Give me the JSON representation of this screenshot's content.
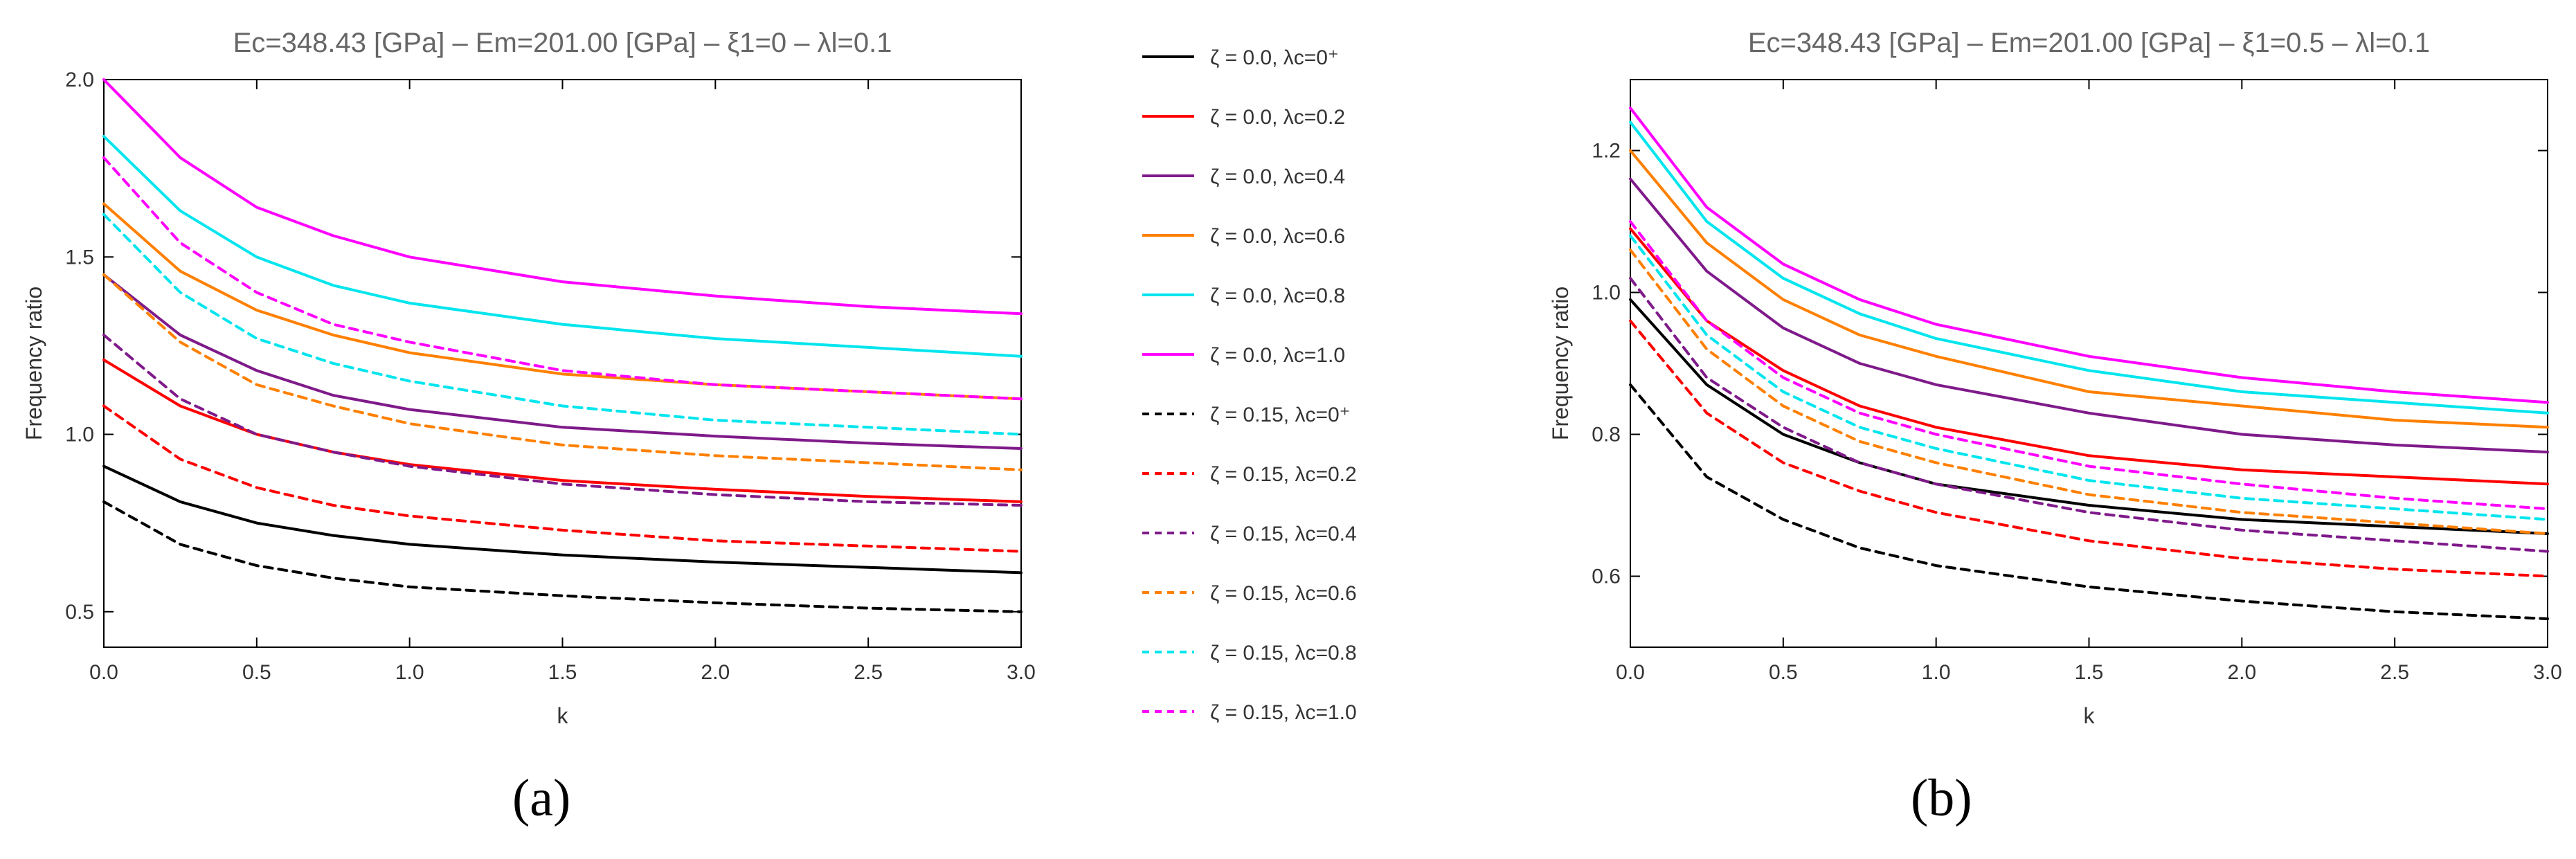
{
  "figure": {
    "panel_a_caption": "(a)",
    "panel_b_caption": "(b)"
  },
  "legend": {
    "entries": [
      {
        "zeta": "ζ = 0.0",
        "lambda": "λc=0⁺",
        "color": "#000000",
        "dash": false
      },
      {
        "zeta": "ζ = 0.0",
        "lambda": "λc=0.2",
        "color": "#ff0000",
        "dash": false
      },
      {
        "zeta": "ζ = 0.0",
        "lambda": "λc=0.4",
        "color": "#7f1a8a",
        "dash": false
      },
      {
        "zeta": "ζ = 0.0",
        "lambda": "λc=0.6",
        "color": "#ff8000",
        "dash": false
      },
      {
        "zeta": "ζ = 0.0",
        "lambda": "λc=0.8",
        "color": "#00e5ee",
        "dash": false
      },
      {
        "zeta": "ζ = 0.0",
        "lambda": "λc=1.0",
        "color": "#ff00ff",
        "dash": false
      },
      {
        "zeta": "ζ = 0.15",
        "lambda": "λc=0⁺",
        "color": "#000000",
        "dash": true
      },
      {
        "zeta": "ζ = 0.15",
        "lambda": "λc=0.2",
        "color": "#ff0000",
        "dash": true
      },
      {
        "zeta": "ζ = 0.15",
        "lambda": "λc=0.4",
        "color": "#7f1a8a",
        "dash": true
      },
      {
        "zeta": "ζ = 0.15",
        "lambda": "λc=0.6",
        "color": "#ff8000",
        "dash": true
      },
      {
        "zeta": "ζ = 0.15",
        "lambda": "λc=0.8",
        "color": "#00e5ee",
        "dash": true
      },
      {
        "zeta": "ζ = 0.15",
        "lambda": "λc=1.0",
        "color": "#ff00ff",
        "dash": true
      }
    ]
  },
  "chart_data": [
    {
      "type": "line",
      "title": "Ec=348.43 [GPa] – Em=201.00 [GPa] – ξ1=0 – λl=0.1",
      "xlabel": "k",
      "ylabel": "Frequency ratio",
      "xlim": [
        0,
        3
      ],
      "ylim": [
        0.4,
        2.0
      ],
      "xticks": [
        "0.0",
        "0.5",
        "1.0",
        "1.5",
        "2.0",
        "2.5",
        "3.0"
      ],
      "yticks": [
        "0.5",
        "1.0",
        "1.5",
        "2.0"
      ],
      "x": [
        0,
        0.25,
        0.5,
        0.75,
        1.0,
        1.5,
        2.0,
        2.5,
        3.0
      ],
      "series": [
        {
          "name": "ζ=0.0, λc=0⁺",
          "color": "#000000",
          "dash": false,
          "values": [
            0.91,
            0.81,
            0.75,
            0.715,
            0.69,
            0.66,
            0.64,
            0.625,
            0.61
          ]
        },
        {
          "name": "ζ=0.0, λc=0.2",
          "color": "#ff0000",
          "dash": false,
          "values": [
            1.21,
            1.08,
            1.0,
            0.95,
            0.915,
            0.87,
            0.845,
            0.825,
            0.81
          ]
        },
        {
          "name": "ζ=0.0, λc=0.4",
          "color": "#7f1a8a",
          "dash": false,
          "values": [
            1.45,
            1.28,
            1.18,
            1.11,
            1.07,
            1.02,
            0.995,
            0.975,
            0.96
          ]
        },
        {
          "name": "ζ=0.0, λc=0.6",
          "color": "#ff8000",
          "dash": false,
          "values": [
            1.65,
            1.46,
            1.35,
            1.28,
            1.23,
            1.17,
            1.14,
            1.12,
            1.1
          ]
        },
        {
          "name": "ζ=0.0, λc=0.8",
          "color": "#00e5ee",
          "dash": false,
          "values": [
            1.84,
            1.63,
            1.5,
            1.42,
            1.37,
            1.31,
            1.27,
            1.245,
            1.22
          ]
        },
        {
          "name": "ζ=0.0, λc=1.0",
          "color": "#ff00ff",
          "dash": false,
          "values": [
            2.0,
            1.78,
            1.64,
            1.56,
            1.5,
            1.43,
            1.39,
            1.36,
            1.34
          ]
        },
        {
          "name": "ζ=0.15, λc=0⁺",
          "color": "#000000",
          "dash": true,
          "values": [
            0.81,
            0.69,
            0.63,
            0.595,
            0.57,
            0.545,
            0.525,
            0.51,
            0.5
          ]
        },
        {
          "name": "ζ=0.15, λc=0.2",
          "color": "#ff0000",
          "dash": true,
          "values": [
            1.08,
            0.93,
            0.85,
            0.8,
            0.77,
            0.73,
            0.7,
            0.685,
            0.67
          ]
        },
        {
          "name": "ζ=0.15, λc=0.4",
          "color": "#7f1a8a",
          "dash": true,
          "values": [
            1.28,
            1.1,
            1.0,
            0.95,
            0.91,
            0.86,
            0.83,
            0.81,
            0.8
          ]
        },
        {
          "name": "ζ=0.15, λc=0.6",
          "color": "#ff8000",
          "dash": true,
          "values": [
            1.45,
            1.26,
            1.14,
            1.08,
            1.03,
            0.97,
            0.94,
            0.92,
            0.9
          ]
        },
        {
          "name": "ζ=0.15, λc=0.8",
          "color": "#00e5ee",
          "dash": true,
          "values": [
            1.62,
            1.4,
            1.27,
            1.2,
            1.15,
            1.08,
            1.04,
            1.02,
            1.0
          ]
        },
        {
          "name": "ζ=0.15, λc=1.0",
          "color": "#ff00ff",
          "dash": true,
          "values": [
            1.78,
            1.54,
            1.4,
            1.31,
            1.26,
            1.18,
            1.14,
            1.12,
            1.1
          ]
        }
      ]
    },
    {
      "type": "line",
      "title": "Ec=348.43 [GPa] – Em=201.00 [GPa] – ξ1=0.5 – λl=0.1",
      "xlabel": "k",
      "ylabel": "Frequency ratio",
      "xlim": [
        0,
        3
      ],
      "ylim": [
        0.5,
        1.3
      ],
      "xticks": [
        "0.0",
        "0.5",
        "1.0",
        "1.5",
        "2.0",
        "2.5",
        "3.0"
      ],
      "yticks": [
        "0.6",
        "0.8",
        "1.0",
        "1.2"
      ],
      "x": [
        0,
        0.25,
        0.5,
        0.75,
        1.0,
        1.5,
        2.0,
        2.5,
        3.0
      ],
      "series": [
        {
          "name": "ζ=0.0, λc=0⁺",
          "color": "#000000",
          "dash": false,
          "values": [
            0.99,
            0.87,
            0.8,
            0.76,
            0.73,
            0.7,
            0.68,
            0.67,
            0.66
          ]
        },
        {
          "name": "ζ=0.0, λc=0.2",
          "color": "#ff0000",
          "dash": false,
          "values": [
            1.09,
            0.96,
            0.89,
            0.84,
            0.81,
            0.77,
            0.75,
            0.74,
            0.73
          ]
        },
        {
          "name": "ζ=0.0, λc=0.4",
          "color": "#7f1a8a",
          "dash": false,
          "values": [
            1.16,
            1.03,
            0.95,
            0.9,
            0.87,
            0.83,
            0.8,
            0.785,
            0.775
          ]
        },
        {
          "name": "ζ=0.0, λc=0.6",
          "color": "#ff8000",
          "dash": false,
          "values": [
            1.2,
            1.07,
            0.99,
            0.94,
            0.91,
            0.86,
            0.84,
            0.82,
            0.81
          ]
        },
        {
          "name": "ζ=0.0, λc=0.8",
          "color": "#00e5ee",
          "dash": false,
          "values": [
            1.24,
            1.1,
            1.02,
            0.97,
            0.935,
            0.89,
            0.86,
            0.845,
            0.83
          ]
        },
        {
          "name": "ζ=0.0, λc=1.0",
          "color": "#ff00ff",
          "dash": false,
          "values": [
            1.26,
            1.12,
            1.04,
            0.99,
            0.955,
            0.91,
            0.88,
            0.86,
            0.845
          ]
        },
        {
          "name": "ζ=0.15, λc=0⁺",
          "color": "#000000",
          "dash": true,
          "values": [
            0.87,
            0.74,
            0.68,
            0.64,
            0.615,
            0.585,
            0.565,
            0.55,
            0.54
          ]
        },
        {
          "name": "ζ=0.15, λc=0.2",
          "color": "#ff0000",
          "dash": true,
          "values": [
            0.96,
            0.83,
            0.76,
            0.72,
            0.69,
            0.65,
            0.625,
            0.61,
            0.6
          ]
        },
        {
          "name": "ζ=0.15, λc=0.4",
          "color": "#7f1a8a",
          "dash": true,
          "values": [
            1.02,
            0.88,
            0.81,
            0.76,
            0.73,
            0.69,
            0.665,
            0.65,
            0.635
          ]
        },
        {
          "name": "ζ=0.15, λc=0.6",
          "color": "#ff8000",
          "dash": true,
          "values": [
            1.06,
            0.92,
            0.84,
            0.79,
            0.76,
            0.715,
            0.69,
            0.675,
            0.66
          ]
        },
        {
          "name": "ζ=0.15, λc=0.8",
          "color": "#00e5ee",
          "dash": true,
          "values": [
            1.08,
            0.94,
            0.86,
            0.81,
            0.78,
            0.735,
            0.71,
            0.695,
            0.68
          ]
        },
        {
          "name": "ζ=0.15, λc=1.0",
          "color": "#ff00ff",
          "dash": true,
          "values": [
            1.1,
            0.96,
            0.88,
            0.83,
            0.8,
            0.755,
            0.73,
            0.71,
            0.695
          ]
        }
      ]
    }
  ]
}
